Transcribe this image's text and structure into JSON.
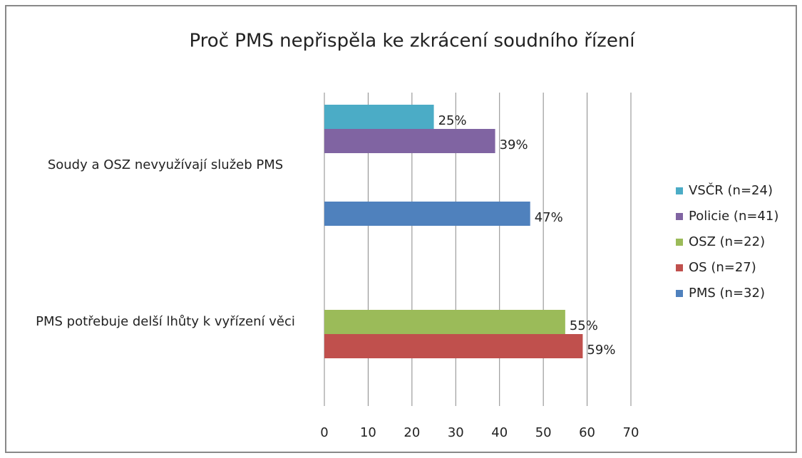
{
  "chart_data": {
    "type": "bar",
    "orientation": "horizontal",
    "title": "Proč PMS nepřispěla ke zkrácení soudního řízení",
    "categories": [
      "Soudy a OSZ nevyužívají služeb PMS",
      "PMS potřebuje delší lhůty k vyřízení věci"
    ],
    "series": [
      {
        "name": "VSČR (n=24)",
        "color": "#4bacc6",
        "values": [
          25,
          null
        ],
        "value_labels": [
          "25%",
          null
        ]
      },
      {
        "name": "Policie (n=41)",
        "color": "#8064a2",
        "values": [
          39,
          null
        ],
        "value_labels": [
          "39%",
          null
        ]
      },
      {
        "name": "OSZ (n=22)",
        "color": "#9bbb59",
        "values": [
          null,
          55
        ],
        "value_labels": [
          null,
          "55%"
        ]
      },
      {
        "name": "OS (n=27)",
        "color": "#c0504d",
        "values": [
          null,
          59
        ],
        "value_labels": [
          null,
          "59%"
        ]
      },
      {
        "name": "PMS (n=32)",
        "color": "#4f81bd",
        "values": [
          47,
          null
        ],
        "value_labels": [
          "47%",
          null
        ]
      }
    ],
    "xlim": [
      0,
      70
    ],
    "xticks": [
      0,
      10,
      20,
      30,
      40,
      50,
      60,
      70
    ],
    "grid": true,
    "legend": "right"
  }
}
